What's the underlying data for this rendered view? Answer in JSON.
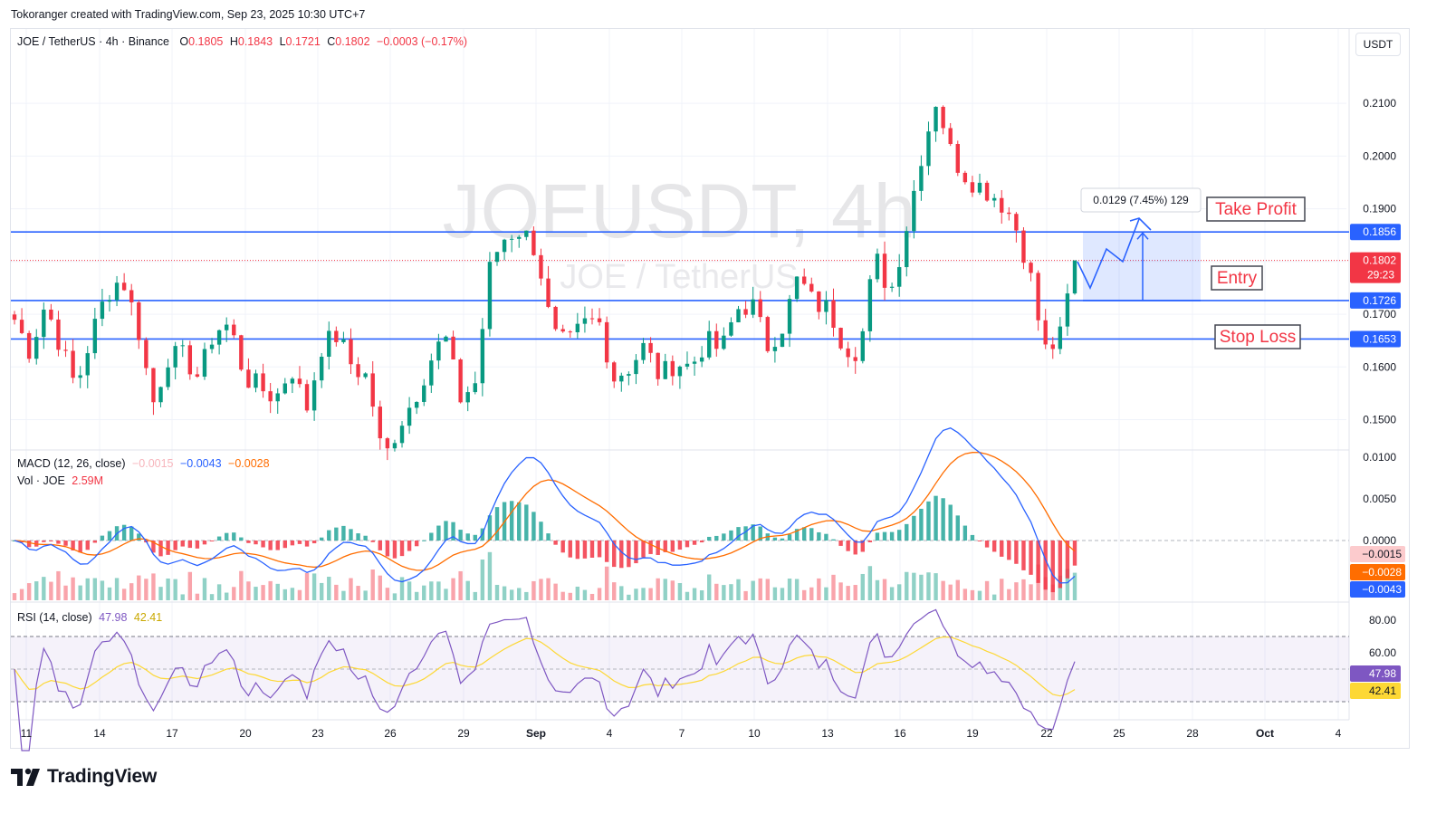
{
  "caption": "Tokoranger created with TradingView.com, Sep 23, 2025 10:30 UTC+7",
  "symbol_line": "JOE / TetherUS · 4h · Binance",
  "ohlc": {
    "o_label": "O",
    "o": "0.1805",
    "h_label": "H",
    "h": "0.1843",
    "l_label": "L",
    "l": "0.1721",
    "c_label": "C",
    "c": "0.1802",
    "change": "−0.0003 (−0.17%)"
  },
  "currency_button": "USDT",
  "watermark": {
    "line1": "JOEUSDT, 4h",
    "line2": "JOE / TetherUS"
  },
  "macd_legend": {
    "label": "MACD (12, 26, close)",
    "hist": "−0.0015",
    "macd": "−0.0043",
    "signal": "−0.0028"
  },
  "vol_legend": {
    "label": "Vol · JOE",
    "value": "2.59M"
  },
  "rsi_legend": {
    "label": "RSI (14, close)",
    "rsi": "47.98",
    "ma": "42.41"
  },
  "brand": "TradingView",
  "colors": {
    "up": "#089981",
    "down": "#f23645",
    "level": "#2962ff",
    "macd": "#2962ff",
    "signal": "#ff6d00",
    "rsi": "#7e57c2",
    "rsi_ma": "#fdd835"
  },
  "chart_data": {
    "type": "candlestick",
    "title": "JOEUSDT, 4h",
    "price_axis": {
      "ticks": [
        "0.2100",
        "0.2000",
        "0.1900",
        "0.1800",
        "0.1700",
        "0.1600",
        "0.1500"
      ],
      "values": [
        0.21,
        0.2,
        0.19,
        0.18,
        0.17,
        0.16,
        0.15
      ],
      "range": [
        0.1446,
        0.2241
      ]
    },
    "time_axis": {
      "ticks": [
        "11",
        "14",
        "17",
        "20",
        "23",
        "26",
        "29",
        "Sep",
        "4",
        "7",
        "10",
        "13",
        "16",
        "19",
        "22",
        "25",
        "28",
        "Oct",
        "4"
      ]
    },
    "levels": [
      {
        "name": "Take Profit",
        "price": 0.1856,
        "label": "0.1856"
      },
      {
        "name": "Entry",
        "price": 0.1726,
        "label": "0.1726"
      },
      {
        "name": "Stop Loss",
        "price": 0.1653,
        "label": "0.1653"
      }
    ],
    "last_price": {
      "label": "0.1802",
      "countdown": "29:23",
      "price": 0.1802
    },
    "projection": {
      "label": "0.0129 (7.45%) 129"
    },
    "price_path": [
      0.169,
      0.163,
      0.172,
      0.164,
      0.156,
      0.166,
      0.174,
      0.177,
      0.168,
      0.153,
      0.162,
      0.162,
      0.158,
      0.167,
      0.168,
      0.158,
      0.156,
      0.154,
      0.16,
      0.152,
      0.164,
      0.166,
      0.16,
      0.158,
      0.142,
      0.149,
      0.154,
      0.161,
      0.166,
      0.154,
      0.157,
      0.18,
      0.185,
      0.186,
      0.182,
      0.166,
      0.164,
      0.168,
      0.169,
      0.158,
      0.16,
      0.164,
      0.158,
      0.161,
      0.16,
      0.165,
      0.163,
      0.171,
      0.172,
      0.164,
      0.168,
      0.177,
      0.172,
      0.171,
      0.164,
      0.163,
      0.181,
      0.174,
      0.186,
      0.2,
      0.211,
      0.2,
      0.196,
      0.194,
      0.192,
      0.188,
      0.179,
      0.163,
      0.165,
      0.1802
    ],
    "macd_axis": {
      "ticks": [
        "0.0100",
        "0.0050",
        "0.0000"
      ],
      "values": [
        0.01,
        0.005,
        0.0
      ]
    },
    "rsi_axis": {
      "ticks": [
        "80.00",
        "60.00"
      ],
      "values": [
        80,
        60
      ],
      "bands": [
        70,
        30
      ]
    },
    "labels_right": {
      "hist": "−0.0015",
      "signal": "−0.0028",
      "macd": "−0.0043",
      "rsi": "47.98",
      "rsi_ma": "42.41"
    }
  }
}
